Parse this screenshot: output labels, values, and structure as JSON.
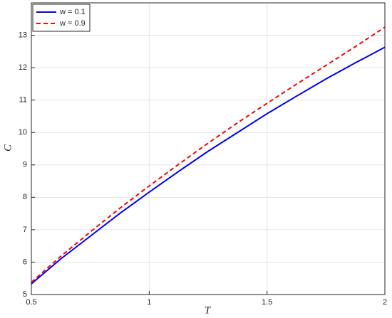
{
  "chart_data": {
    "type": "line",
    "x_label": "T",
    "y_label": "C",
    "x": [
      0.5,
      0.625,
      0.75,
      0.875,
      1,
      1.125,
      1.25,
      1.375,
      1.5,
      1.625,
      1.75,
      1.875,
      2
    ],
    "series": [
      {
        "name": "w = 0.1",
        "color": "#0000ff",
        "dashed": false,
        "values": [
          5.33,
          6.1,
          6.8,
          7.5,
          8.16,
          8.8,
          9.42,
          10.0,
          10.58,
          11.12,
          11.65,
          12.15,
          12.63
        ]
      },
      {
        "name": "w = 0.9",
        "color": "#ff0000",
        "dashed": true,
        "values": [
          5.38,
          6.18,
          6.93,
          7.66,
          8.35,
          9.02,
          9.67,
          10.3,
          10.9,
          11.49,
          12.07,
          12.65,
          13.25
        ]
      }
    ],
    "xlim": [
      0.5,
      2
    ],
    "xticks": [
      0.5,
      1,
      1.5,
      2
    ],
    "ylim": [
      5,
      14
    ],
    "yticks": [
      5,
      6,
      7,
      8,
      9,
      10,
      11,
      12,
      13
    ],
    "grid": true,
    "legend": "top-left"
  }
}
